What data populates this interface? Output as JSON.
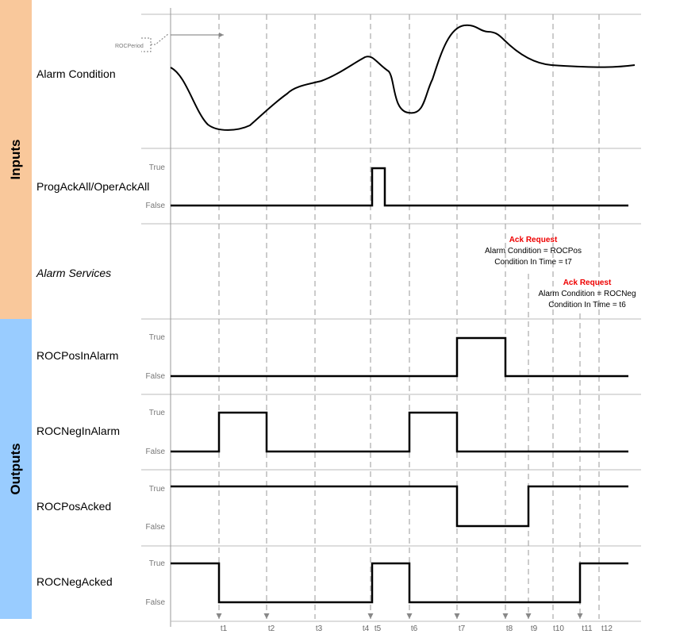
{
  "groups": [
    {
      "label": "Inputs"
    },
    {
      "label": "Outputs"
    }
  ],
  "rows": [
    {
      "label": "Alarm Condition"
    },
    {
      "label": "ProgAckAll/OperAckAll",
      "true_label": "True",
      "false_label": "False"
    },
    {
      "label": "Alarm Services"
    },
    {
      "label": "ROCPosInAlarm",
      "true_label": "True",
      "false_label": "False"
    },
    {
      "label": "ROCNegInAlarm",
      "true_label": "True",
      "false_label": "False"
    },
    {
      "label": "ROCPosAcked",
      "true_label": "True",
      "false_label": "False"
    },
    {
      "label": "ROCNegAcked",
      "true_label": "True",
      "false_label": "False"
    }
  ],
  "roc_period": "ROCPeriod",
  "annotations": [
    {
      "title": "Ack Request",
      "lines": [
        "Alarm Condition = ROCPos",
        "Condition In Time = t7"
      ]
    },
    {
      "title": "Ack Request",
      "lines": [
        "Alarm Condition = ROCNeg",
        "Condition In Time = t6"
      ]
    }
  ],
  "times": [
    "t1",
    "t2",
    "t3",
    "t4",
    "t5",
    "t6",
    "t7",
    "t8",
    "t9",
    "t10",
    "t11",
    "t12"
  ]
}
